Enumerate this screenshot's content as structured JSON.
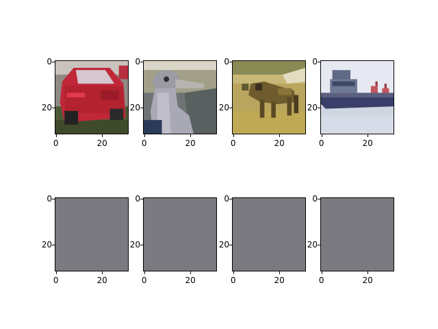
{
  "figure": {
    "panels": [
      {
        "content": "red car",
        "kind": "photo",
        "xticks": [
          "0",
          "20"
        ],
        "yticks": [
          "0",
          "20"
        ]
      },
      {
        "content": "ostrich head",
        "kind": "photo",
        "xticks": [
          "0",
          "20"
        ],
        "yticks": [
          "0",
          "20"
        ]
      },
      {
        "content": "deer in field",
        "kind": "photo",
        "xticks": [
          "0",
          "20"
        ],
        "yticks": [
          "0",
          "20"
        ]
      },
      {
        "content": "ship on water",
        "kind": "photo",
        "xticks": [
          "0",
          "20"
        ],
        "yticks": [
          "0",
          "20"
        ]
      },
      {
        "content": "uniform gray",
        "kind": "solid",
        "color": "#7b7a80",
        "xticks": [
          "0",
          "20"
        ],
        "yticks": [
          "0",
          "20"
        ]
      },
      {
        "content": "uniform gray",
        "kind": "solid",
        "color": "#7b7a80",
        "xticks": [
          "0",
          "20"
        ],
        "yticks": [
          "0",
          "20"
        ]
      },
      {
        "content": "uniform gray",
        "kind": "solid",
        "color": "#7b7a80",
        "xticks": [
          "0",
          "20"
        ],
        "yticks": [
          "0",
          "20"
        ]
      },
      {
        "content": "uniform gray",
        "kind": "solid",
        "color": "#7b7a80",
        "xticks": [
          "0",
          "20"
        ],
        "yticks": [
          "0",
          "20"
        ]
      }
    ]
  }
}
